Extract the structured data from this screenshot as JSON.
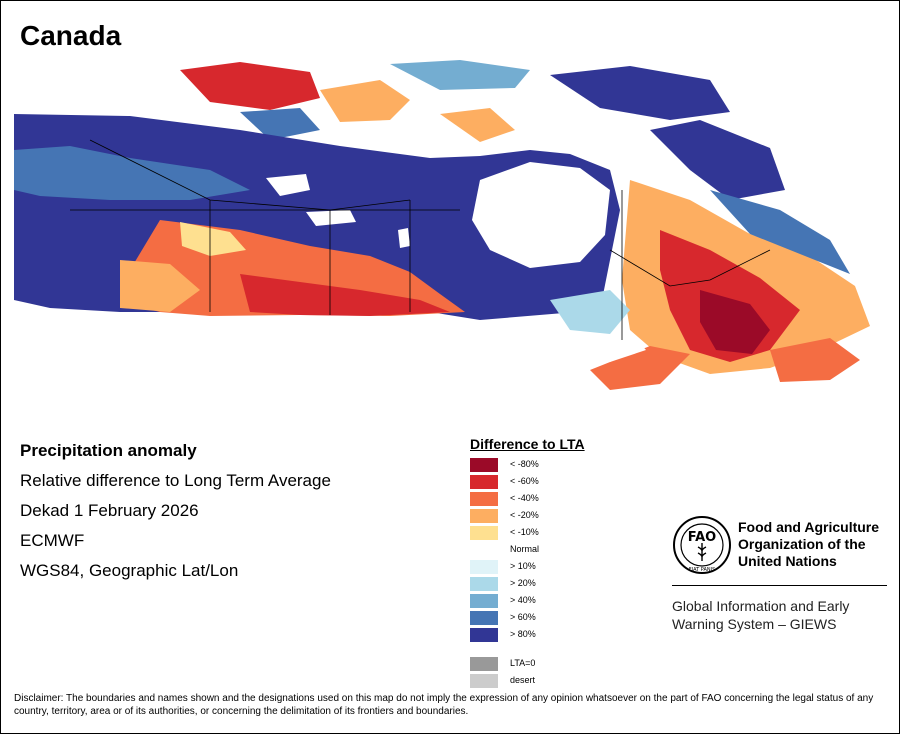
{
  "title": "Canada",
  "map": {
    "region": "Canada",
    "description_colors": {
      "high_positive": "#2e3191",
      "positive": "#4169b4",
      "strong_negative": "#9b0a28",
      "negative": "#e63c2d"
    }
  },
  "info": {
    "heading": "Precipitation anomaly",
    "line1": "Relative difference to Long Term Average",
    "line2": "Dekad 1 February 2026",
    "line3": "ECMWF",
    "line4": "WGS84, Geographic Lat/Lon"
  },
  "legend": {
    "title": "Difference to LTA",
    "items": [
      {
        "label": "< -80%",
        "color": "#9b0a28"
      },
      {
        "label": "< -60%",
        "color": "#d7282d"
      },
      {
        "label": "< -40%",
        "color": "#f46d43"
      },
      {
        "label": "< -20%",
        "color": "#fdae61"
      },
      {
        "label": "< -10%",
        "color": "#fee090"
      },
      {
        "label": "Normal",
        "color": "#ffffff"
      },
      {
        "label": "> 10%",
        "color": "#e0f3f8"
      },
      {
        "label": "> 20%",
        "color": "#abd9e9"
      },
      {
        "label": "> 40%",
        "color": "#74add1"
      },
      {
        "label": "> 60%",
        "color": "#4575b4"
      },
      {
        "label": "> 80%",
        "color": "#313695"
      }
    ],
    "extra": [
      {
        "label": "LTA=0",
        "color": "#999999"
      },
      {
        "label": "desert",
        "color": "#cccccc"
      }
    ]
  },
  "fao": {
    "logo_text": "FAO",
    "logo_motto": "FIAT PANIS",
    "name_line1": "Food and Agriculture",
    "name_line2": "Organization of the",
    "name_line3": "United Nations",
    "giews_line1": "Global Information and Early",
    "giews_line2": "Warning System – GIEWS"
  },
  "disclaimer": "Disclaimer: The boundaries and names shown and the designations used on this map do not imply the expression of any opinion whatsoever on the part of FAO concerning the legal status of any country, territory, area or of its authorities, or concerning the delimitation of its frontiers and boundaries."
}
